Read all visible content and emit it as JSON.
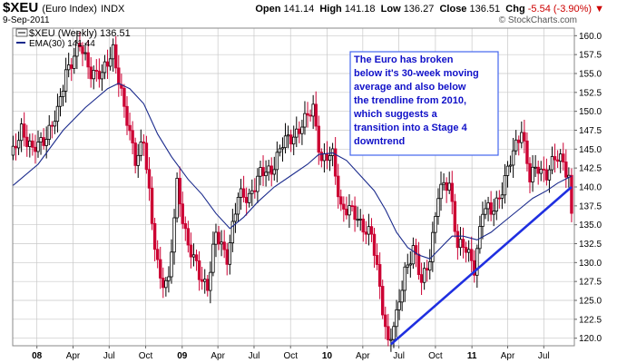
{
  "header": {
    "symbol": "$XEU",
    "name": "(Euro Index)",
    "exchange": "INDX",
    "date": "9-Sep-2011",
    "open_label": "Open",
    "open": "141.14",
    "high_label": "High",
    "high": "141.18",
    "low_label": "Low",
    "low": "136.27",
    "close_label": "Close",
    "close": "136.51",
    "chg_label": "Chg",
    "chg": "-5.54 (-3.90%)",
    "chg_arrow": "▼",
    "watermark": "© StockCharts.com"
  },
  "legend": {
    "price": "$XEU (Weekly) 136.51",
    "ema": "EMA(30) 141.44"
  },
  "annotation": [
    "The Euro has broken",
    "below it's 30-week moving",
    "average and also below",
    "the trendline from 2010,",
    "which suggests a",
    "transition into a Stage 4",
    "downtrend"
  ],
  "colors": {
    "up": "#000000",
    "down": "#cc0033",
    "ema": "#1a2a8c",
    "trendline": "#1f2fe0",
    "grid": "#c8c8c8",
    "annotation_text": "#1010c8"
  },
  "chart_data": {
    "type": "candlestick",
    "interval": "weekly",
    "ylim": [
      119,
      161
    ],
    "yticks": [
      120,
      122.5,
      125,
      127.5,
      130,
      132.5,
      135,
      137.5,
      140,
      142.5,
      145,
      147.5,
      150,
      152.5,
      155,
      157.5,
      160
    ],
    "ytick_labels": [
      "120.0",
      "122.5",
      "125.0",
      "127.5",
      "130.0",
      "132.5",
      "135.0",
      "137.5",
      "140.0",
      "142.5",
      "145.0",
      "147.5",
      "150.0",
      "152.5",
      "155.0",
      "157.5",
      "160.0"
    ],
    "xlim": [
      "2007-11-01",
      "2011-09-16"
    ],
    "xticks": [
      {
        "date": "2008-01-01",
        "label": "08",
        "bold": true
      },
      {
        "date": "2008-04-01",
        "label": "Apr",
        "bold": false
      },
      {
        "date": "2008-07-01",
        "label": "Jul",
        "bold": false
      },
      {
        "date": "2008-10-01",
        "label": "Oct",
        "bold": false
      },
      {
        "date": "2009-01-01",
        "label": "09",
        "bold": true
      },
      {
        "date": "2009-04-01",
        "label": "Apr",
        "bold": false
      },
      {
        "date": "2009-07-01",
        "label": "Jul",
        "bold": false
      },
      {
        "date": "2009-10-01",
        "label": "Oct",
        "bold": false
      },
      {
        "date": "2010-01-01",
        "label": "10",
        "bold": true
      },
      {
        "date": "2010-04-01",
        "label": "Apr",
        "bold": false
      },
      {
        "date": "2010-07-01",
        "label": "Jul",
        "bold": false
      },
      {
        "date": "2010-10-01",
        "label": "Oct",
        "bold": false
      },
      {
        "date": "2011-01-01",
        "label": "11",
        "bold": true
      },
      {
        "date": "2011-04-01",
        "label": "Apr",
        "bold": false
      },
      {
        "date": "2011-07-01",
        "label": "Jul",
        "bold": false
      }
    ],
    "close_path": [
      {
        "date": "2007-11-02",
        "close": 144.2
      },
      {
        "date": "2007-11-23",
        "close": 148.0
      },
      {
        "date": "2007-12-21",
        "close": 144.5
      },
      {
        "date": "2008-01-25",
        "close": 147.0
      },
      {
        "date": "2008-02-22",
        "close": 149.5
      },
      {
        "date": "2008-03-14",
        "close": 155.5
      },
      {
        "date": "2008-04-18",
        "close": 158.5
      },
      {
        "date": "2008-05-16",
        "close": 155.5
      },
      {
        "date": "2008-06-13",
        "close": 154.5
      },
      {
        "date": "2008-07-11",
        "close": 158.5
      },
      {
        "date": "2008-08-08",
        "close": 150.0
      },
      {
        "date": "2008-09-05",
        "close": 144.0
      },
      {
        "date": "2008-09-26",
        "close": 146.0
      },
      {
        "date": "2008-10-17",
        "close": 135.0
      },
      {
        "date": "2008-11-07",
        "close": 128.0
      },
      {
        "date": "2008-11-28",
        "close": 127.0
      },
      {
        "date": "2008-12-19",
        "close": 140.5
      },
      {
        "date": "2009-01-16",
        "close": 132.0
      },
      {
        "date": "2009-02-13",
        "close": 128.5
      },
      {
        "date": "2009-03-06",
        "close": 127.0
      },
      {
        "date": "2009-03-27",
        "close": 133.5
      },
      {
        "date": "2009-04-24",
        "close": 131.0
      },
      {
        "date": "2009-05-22",
        "close": 138.5
      },
      {
        "date": "2009-06-19",
        "close": 139.0
      },
      {
        "date": "2009-07-17",
        "close": 141.5
      },
      {
        "date": "2009-08-14",
        "close": 142.5
      },
      {
        "date": "2009-09-11",
        "close": 145.5
      },
      {
        "date": "2009-10-09",
        "close": 147.0
      },
      {
        "date": "2009-11-06",
        "close": 148.5
      },
      {
        "date": "2009-11-27",
        "close": 150.5
      },
      {
        "date": "2009-12-18",
        "close": 143.5
      },
      {
        "date": "2010-01-15",
        "close": 144.0
      },
      {
        "date": "2010-02-05",
        "close": 137.5
      },
      {
        "date": "2010-03-05",
        "close": 136.5
      },
      {
        "date": "2010-04-02",
        "close": 135.0
      },
      {
        "date": "2010-04-23",
        "close": 133.5
      },
      {
        "date": "2010-05-14",
        "close": 126.5
      },
      {
        "date": "2010-06-04",
        "close": 119.5
      },
      {
        "date": "2010-06-25",
        "close": 122.5
      },
      {
        "date": "2010-07-16",
        "close": 129.0
      },
      {
        "date": "2010-08-06",
        "close": 132.0
      },
      {
        "date": "2010-08-27",
        "close": 127.0
      },
      {
        "date": "2010-09-17",
        "close": 131.0
      },
      {
        "date": "2010-10-08",
        "close": 139.0
      },
      {
        "date": "2010-11-05",
        "close": 140.5
      },
      {
        "date": "2010-11-26",
        "close": 132.5
      },
      {
        "date": "2010-12-17",
        "close": 131.5
      },
      {
        "date": "2011-01-07",
        "close": 129.5
      },
      {
        "date": "2011-01-28",
        "close": 137.0
      },
      {
        "date": "2011-02-18",
        "close": 136.5
      },
      {
        "date": "2011-03-11",
        "close": 139.0
      },
      {
        "date": "2011-04-01",
        "close": 142.0
      },
      {
        "date": "2011-04-22",
        "close": 145.5
      },
      {
        "date": "2011-05-06",
        "close": 148.0
      },
      {
        "date": "2011-05-27",
        "close": 141.0
      },
      {
        "date": "2011-06-17",
        "close": 142.5
      },
      {
        "date": "2011-07-08",
        "close": 142.0
      },
      {
        "date": "2011-07-29",
        "close": 143.5
      },
      {
        "date": "2011-08-19",
        "close": 143.5
      },
      {
        "date": "2011-09-02",
        "close": 141.5
      },
      {
        "date": "2011-09-09",
        "close": 136.51
      }
    ],
    "ema_points": [
      {
        "date": "2007-11-02",
        "value": 140.2
      },
      {
        "date": "2008-01-04",
        "value": 143.0
      },
      {
        "date": "2008-03-07",
        "value": 147.5
      },
      {
        "date": "2008-05-02",
        "value": 150.5
      },
      {
        "date": "2008-06-27",
        "value": 153.0
      },
      {
        "date": "2008-07-25",
        "value": 153.7
      },
      {
        "date": "2008-08-22",
        "value": 153.0
      },
      {
        "date": "2008-09-26",
        "value": 151.0
      },
      {
        "date": "2008-10-31",
        "value": 147.0
      },
      {
        "date": "2008-12-05",
        "value": 144.0
      },
      {
        "date": "2009-01-16",
        "value": 141.0
      },
      {
        "date": "2009-02-20",
        "value": 139.0
      },
      {
        "date": "2009-03-27",
        "value": 136.5
      },
      {
        "date": "2009-05-01",
        "value": 134.5
      },
      {
        "date": "2009-06-05",
        "value": 136.0
      },
      {
        "date": "2009-07-10",
        "value": 138.0
      },
      {
        "date": "2009-08-21",
        "value": 140.0
      },
      {
        "date": "2009-10-02",
        "value": 141.5
      },
      {
        "date": "2009-11-13",
        "value": 143.0
      },
      {
        "date": "2009-12-11",
        "value": 144.3
      },
      {
        "date": "2010-01-15",
        "value": 144.5
      },
      {
        "date": "2010-02-19",
        "value": 143.5
      },
      {
        "date": "2010-03-26",
        "value": 141.5
      },
      {
        "date": "2010-04-30",
        "value": 139.5
      },
      {
        "date": "2010-05-28",
        "value": 137.0
      },
      {
        "date": "2010-06-25",
        "value": 134.0
      },
      {
        "date": "2010-07-23",
        "value": 132.0
      },
      {
        "date": "2010-08-20",
        "value": 131.0
      },
      {
        "date": "2010-09-17",
        "value": 130.5
      },
      {
        "date": "2010-10-15",
        "value": 132.0
      },
      {
        "date": "2010-11-12",
        "value": 133.5
      },
      {
        "date": "2010-12-10",
        "value": 133.5
      },
      {
        "date": "2011-01-14",
        "value": 133.0
      },
      {
        "date": "2011-02-18",
        "value": 134.0
      },
      {
        "date": "2011-03-25",
        "value": 135.5
      },
      {
        "date": "2011-04-29",
        "value": 137.0
      },
      {
        "date": "2011-06-03",
        "value": 138.5
      },
      {
        "date": "2011-07-08",
        "value": 139.5
      },
      {
        "date": "2011-08-05",
        "value": 140.5
      },
      {
        "date": "2011-09-09",
        "value": 141.44
      }
    ],
    "trendline": [
      {
        "date": "2010-06-11",
        "value": 119.2
      },
      {
        "date": "2011-09-09",
        "value": 140.0
      }
    ]
  }
}
